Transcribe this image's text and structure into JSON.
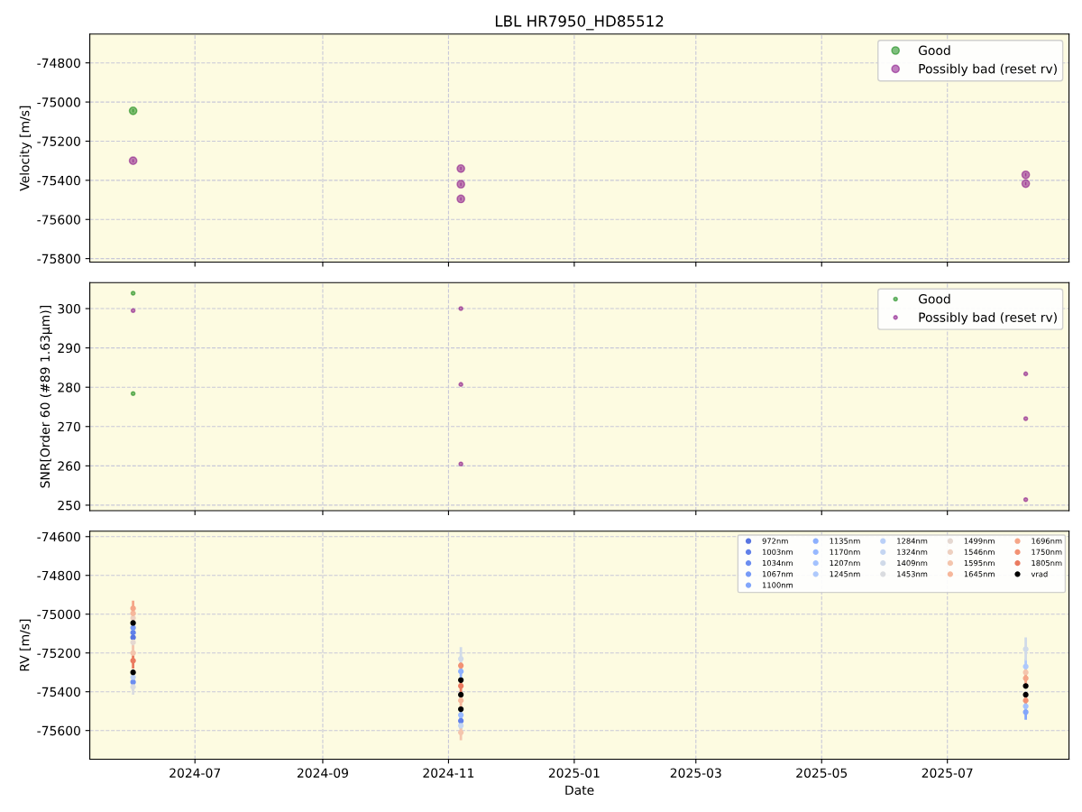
{
  "chart_data": [
    {
      "type": "scatter",
      "title": "LBL HR7950_HD85512",
      "ylabel": "Velocity [m/s]",
      "marker": "circle",
      "grid": true,
      "legend": "top right",
      "tick_labels": "y",
      "xlim": [
        "2024-05-11",
        "2025-08-29"
      ],
      "xticks": [
        {
          "value": "2024-07-01",
          "label": null
        },
        {
          "value": "2024-09-01",
          "label": null
        },
        {
          "value": "2024-11-01",
          "label": null
        },
        {
          "value": "2025-01-01",
          "label": null
        },
        {
          "value": "2025-03-01",
          "label": null
        },
        {
          "value": "2025-05-01",
          "label": null
        },
        {
          "value": "2025-07-01",
          "label": null
        }
      ],
      "ylim": [
        -75818,
        -74653
      ],
      "yticks": [
        -75800,
        -75600,
        -75400,
        -75200,
        -75000,
        -74800
      ],
      "series": [
        {
          "name": "Good",
          "color": "#008000",
          "x": [
            "2024-06-01"
          ],
          "values": [
            -75045
          ],
          "errors": [
            8
          ]
        },
        {
          "name": "Possibly bad (reset rv)",
          "color": "#800080",
          "x": [
            "2024-06-01",
            "2024-11-07",
            "2024-11-07",
            "2024-11-07",
            "2025-08-08",
            "2025-08-08"
          ],
          "values": [
            -75300,
            -75340,
            -75420,
            -75495,
            -75372,
            -75417
          ],
          "errors": [
            8,
            8,
            8,
            8,
            8,
            8
          ]
        }
      ]
    },
    {
      "type": "scatter",
      "ylabel": "SNR[Order 60 (#89 1.63μm)]",
      "marker": "circle",
      "grid": true,
      "legend": "top right",
      "tick_labels": "y",
      "xlim": [
        "2024-05-11",
        "2025-08-29"
      ],
      "xticks": [
        {
          "value": "2024-07-01",
          "label": null
        },
        {
          "value": "2024-09-01",
          "label": null
        },
        {
          "value": "2024-11-01",
          "label": null
        },
        {
          "value": "2025-01-01",
          "label": null
        },
        {
          "value": "2025-03-01",
          "label": null
        },
        {
          "value": "2025-05-01",
          "label": null
        },
        {
          "value": "2025-07-01",
          "label": null
        }
      ],
      "ylim": [
        248.6,
        306.6
      ],
      "yticks": [
        250,
        260,
        270,
        280,
        290,
        300
      ],
      "series": [
        {
          "name": "Good",
          "color": "#008000",
          "x": [
            "2024-06-01",
            "2024-06-01"
          ],
          "values": [
            303.9,
            278.4
          ]
        },
        {
          "name": "Possibly bad (reset rv)",
          "color": "#800080",
          "x": [
            "2024-06-01",
            "2024-11-07",
            "2024-11-07",
            "2024-11-07",
            "2025-08-08",
            "2025-08-08",
            "2025-08-08"
          ],
          "values": [
            299.5,
            300.0,
            280.7,
            260.5,
            283.4,
            272.0,
            251.4
          ]
        }
      ]
    },
    {
      "type": "scatter",
      "ylabel": "RV [m/s]",
      "xlabel": "Date",
      "marker": "circle",
      "grid": true,
      "legend": "top right",
      "xlim": [
        "2024-05-11",
        "2025-08-29"
      ],
      "xticks": [
        {
          "value": "2024-07-01",
          "label": "2024-07"
        },
        {
          "value": "2024-09-01",
          "label": "2024-09"
        },
        {
          "value": "2024-11-01",
          "label": "2024-11"
        },
        {
          "value": "2025-01-01",
          "label": "2025-01"
        },
        {
          "value": "2025-03-01",
          "label": "2025-03"
        },
        {
          "value": "2025-05-01",
          "label": "2025-05"
        },
        {
          "value": "2025-07-01",
          "label": "2025-07"
        }
      ],
      "ylim": [
        -75748,
        -74572
      ],
      "yticks": [
        -75600,
        -75400,
        -75200,
        -75000,
        -74800,
        -74600
      ],
      "x": [
        "2024-06-01",
        "2024-06-01",
        "2024-11-07",
        "2024-11-07",
        "2024-11-07",
        "2025-08-08",
        "2025-08-08"
      ],
      "series": [
        {
          "name": "972nm",
          "color": "#5875e1",
          "values": [
            -75120,
            null,
            null,
            null,
            null,
            null,
            null
          ],
          "errors": [
            40,
            null,
            null,
            null,
            null,
            null,
            null
          ]
        },
        {
          "name": "1003nm",
          "color": "#6180e9",
          "values": [
            -75095,
            null,
            null,
            null,
            -75550,
            null,
            null
          ],
          "errors": [
            40,
            null,
            null,
            null,
            40,
            null,
            null
          ]
        },
        {
          "name": "1034nm",
          "color": "#6b8df0",
          "values": [
            null,
            -75350,
            null,
            null,
            null,
            null,
            null
          ],
          "errors": [
            null,
            40,
            null,
            null,
            null,
            null,
            null
          ]
        },
        {
          "name": "1067nm",
          "color": "#779af7",
          "values": [
            -75070,
            null,
            null,
            null,
            null,
            null,
            null
          ],
          "errors": [
            40,
            null,
            null,
            null,
            null,
            null,
            null
          ]
        },
        {
          "name": "1100nm",
          "color": "#82a6fb",
          "values": [
            null,
            null,
            null,
            null,
            null,
            null,
            -75505
          ],
          "errors": [
            null,
            null,
            null,
            null,
            null,
            null,
            40
          ]
        },
        {
          "name": "1135nm",
          "color": "#8db0fe",
          "values": [
            null,
            null,
            -75295,
            null,
            null,
            null,
            null
          ],
          "errors": [
            null,
            null,
            40,
            null,
            null,
            null,
            null
          ]
        },
        {
          "name": "1170nm",
          "color": "#98b9ff",
          "values": [
            null,
            null,
            null,
            null,
            -75520,
            null,
            null
          ],
          "errors": [
            null,
            null,
            null,
            null,
            40,
            null,
            null
          ]
        },
        {
          "name": "1207nm",
          "color": "#a3c2fe",
          "values": [
            null,
            null,
            null,
            null,
            null,
            null,
            -75475
          ],
          "errors": [
            null,
            null,
            null,
            null,
            null,
            null,
            40
          ]
        },
        {
          "name": "1245nm",
          "color": "#aec9fc",
          "values": [
            null,
            null,
            null,
            null,
            null,
            -75270,
            null
          ],
          "errors": [
            null,
            null,
            null,
            null,
            null,
            40,
            null
          ]
        },
        {
          "name": "1284nm",
          "color": "#bad0f8",
          "values": [
            null,
            -75325,
            null,
            null,
            null,
            null,
            null
          ],
          "errors": [
            null,
            40,
            null,
            null,
            null,
            null,
            null
          ]
        },
        {
          "name": "1324nm",
          "color": "#c5d6f2",
          "values": [
            null,
            null,
            null,
            null,
            -75575,
            null,
            null
          ],
          "errors": [
            null,
            null,
            null,
            null,
            40,
            null,
            null
          ]
        },
        {
          "name": "1409nm",
          "color": "#d0dae9",
          "values": [
            null,
            null,
            -75230,
            null,
            null,
            -75180,
            null
          ],
          "errors": [
            null,
            null,
            60,
            null,
            null,
            60,
            null
          ]
        },
        {
          "name": "1453nm",
          "color": "#dadce0",
          "values": [
            null,
            -75375,
            null,
            null,
            null,
            null,
            null
          ],
          "errors": [
            null,
            40,
            null,
            null,
            null,
            null,
            null
          ]
        },
        {
          "name": "1499nm",
          "color": "#e5d8d1",
          "values": [
            -75145,
            null,
            null,
            null,
            null,
            null,
            null
          ],
          "errors": [
            40,
            null,
            null,
            null,
            null,
            null,
            null
          ]
        },
        {
          "name": "1546nm",
          "color": "#eed0c0",
          "values": [
            -75020,
            null,
            null,
            null,
            null,
            null,
            null
          ],
          "errors": [
            40,
            null,
            null,
            null,
            null,
            null,
            null
          ]
        },
        {
          "name": "1595nm",
          "color": "#f4c5ad",
          "values": [
            null,
            -75200,
            null,
            null,
            -75610,
            -75300,
            null
          ],
          "errors": [
            null,
            40,
            null,
            null,
            40,
            40,
            null
          ]
        },
        {
          "name": "1645nm",
          "color": "#f6b79b",
          "values": [
            -74995,
            null,
            null,
            -75445,
            null,
            null,
            null
          ],
          "errors": [
            40,
            null,
            null,
            40,
            null,
            null,
            null
          ]
        },
        {
          "name": "1696nm",
          "color": "#f5a688",
          "values": [
            -74970,
            null,
            null,
            null,
            null,
            -75330,
            null
          ],
          "errors": [
            40,
            null,
            null,
            null,
            null,
            40,
            null
          ]
        },
        {
          "name": "1750nm",
          "color": "#f29274",
          "values": [
            null,
            null,
            -75265,
            null,
            null,
            null,
            -75445
          ],
          "errors": [
            null,
            null,
            15,
            null,
            null,
            null,
            15
          ]
        },
        {
          "name": "1805nm",
          "color": "#ea7b60",
          "values": [
            null,
            -75240,
            -75370,
            null,
            null,
            null,
            null
          ],
          "errors": [
            null,
            40,
            40,
            null,
            null,
            null,
            null
          ]
        },
        {
          "name": "vrad",
          "color": "#000000",
          "values": [
            -75045,
            -75300,
            -75340,
            -75415,
            -75490,
            -75370,
            -75415
          ],
          "errors": [
            8,
            8,
            8,
            8,
            8,
            8,
            8
          ]
        }
      ]
    }
  ]
}
